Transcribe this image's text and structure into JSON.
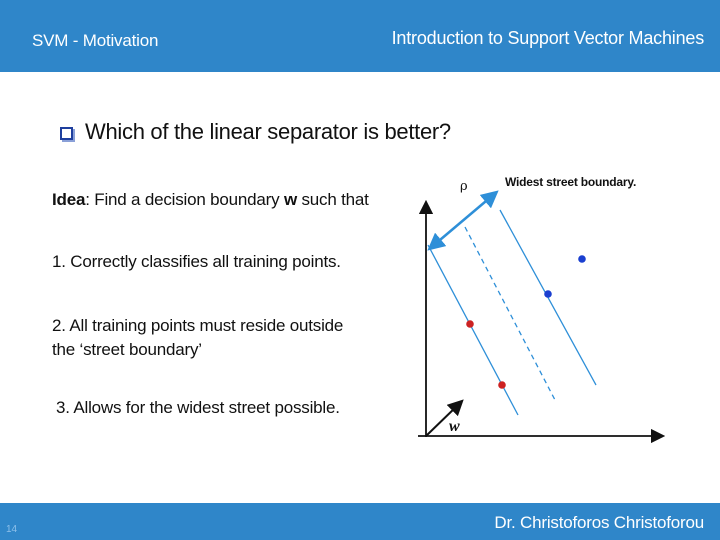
{
  "header": {
    "section": "SVM - Motivation",
    "title": "Introduction to Support Vector Machines"
  },
  "question": "Which of the linear separator is better?",
  "idea": {
    "label": "Idea",
    "text_before": ": Find a decision boundary ",
    "symbol": "w",
    "text_after": " such that"
  },
  "points": [
    "1. Correctly classifies all training points.",
    "2. All training points must reside outside",
    "the ‘street boundary’",
    "3. Allows for the widest street possible."
  ],
  "figure": {
    "street_label": "Widest street boundary.",
    "rho": "ρ",
    "w": "w",
    "colors": {
      "line": "#2e8fd8",
      "red_point": "#cc2222",
      "blue_point": "#1a3fd0",
      "axis": "#111111"
    }
  },
  "footer": {
    "author": "Dr. Christoforos Christoforou",
    "page_number": "14"
  }
}
